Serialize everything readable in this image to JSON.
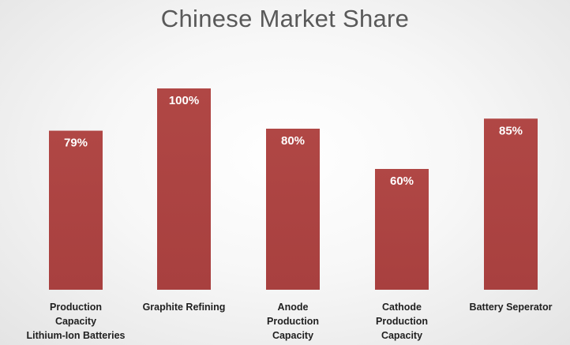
{
  "chart_data": {
    "type": "bar",
    "title": "Chinese Market Share",
    "categories": [
      [
        "Production",
        "Capacity",
        "Lithium-Ion Batteries"
      ],
      [
        "Graphite Refining"
      ],
      [
        "Anode",
        "Production",
        "Capacity"
      ],
      [
        "Cathode",
        "Production",
        "Capacity"
      ],
      [
        "Battery Seperator"
      ]
    ],
    "values": [
      79,
      100,
      80,
      60,
      85
    ],
    "data_labels": [
      "79%",
      "100%",
      "80%",
      "60%",
      "85%"
    ],
    "ylim": [
      0,
      100
    ],
    "grid": false,
    "legend": "none",
    "bar_color": "#a8403f",
    "data_label_color": "#ffffff"
  }
}
